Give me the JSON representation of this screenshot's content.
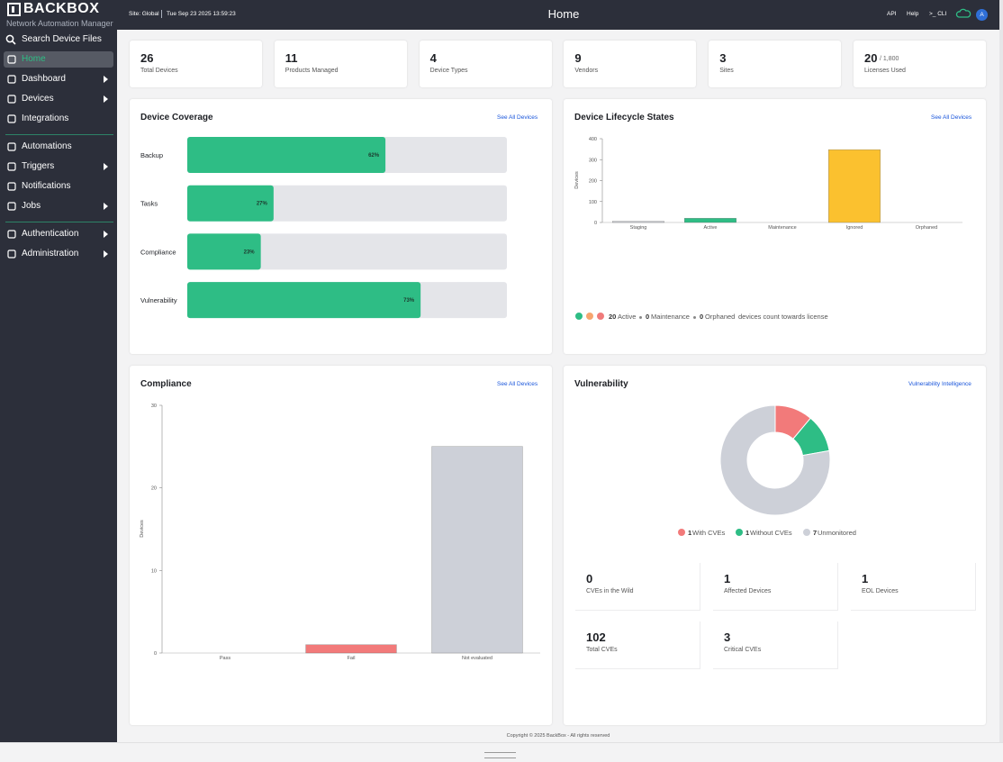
{
  "header": {
    "logo": "BACKBOX",
    "subtitle": "Network Automation Manager",
    "site": "Site: Global",
    "datetime": "Tue Sep 23 2025 13:59:23",
    "page_title": "Home",
    "links": [
      "API",
      "Help",
      ">_ CLI"
    ],
    "avatar": "A"
  },
  "sidebar": {
    "search": "Search Device Files",
    "groups": [
      [
        {
          "label": "Home",
          "active": true,
          "expandable": false
        },
        {
          "label": "Dashboard",
          "active": false,
          "expandable": true
        },
        {
          "label": "Devices",
          "active": false,
          "expandable": true
        },
        {
          "label": "Integrations",
          "active": false,
          "expandable": false
        }
      ],
      [
        {
          "label": "Automations",
          "active": false,
          "expandable": false
        },
        {
          "label": "Triggers",
          "active": false,
          "expandable": true
        },
        {
          "label": "Notifications",
          "active": false,
          "expandable": false
        },
        {
          "label": "Jobs",
          "active": false,
          "expandable": true
        }
      ],
      [
        {
          "label": "Authentication",
          "active": false,
          "expandable": true
        },
        {
          "label": "Administration",
          "active": false,
          "expandable": true
        }
      ]
    ]
  },
  "stats": [
    {
      "value": 26,
      "label": "Total Devices"
    },
    {
      "value": 11,
      "label": "Products Managed"
    },
    {
      "value": 4,
      "label": "Device Types"
    },
    {
      "value": 9,
      "label": "Vendors"
    },
    {
      "value": 3,
      "label": "Sites"
    },
    {
      "value": 20,
      "suffix": "/ 1,800",
      "label": "Licenses Used"
    }
  ],
  "chart_data": [
    {
      "type": "progress",
      "title": "Device Coverage",
      "link": "See All Devices",
      "categories": [
        "Backup",
        "Tasks",
        "Compliance",
        "Vulnerability"
      ],
      "values": [
        62,
        27,
        23,
        73
      ],
      "value_labels": [
        "62%",
        "27%",
        "23%",
        "73%"
      ],
      "xlim": [
        0,
        100
      ],
      "color": "#2ebd85"
    },
    {
      "type": "bar",
      "title": "Device Lifecycle States",
      "link": "See All Devices",
      "categories": [
        "Staging",
        "Active",
        "Maintenance",
        "Ignored",
        "Orphaned"
      ],
      "values": [
        5,
        20,
        0,
        348,
        0
      ],
      "colors": [
        "#c8cad0",
        "#2ebd85",
        "#f7a56f",
        "#fbc12f",
        "#f07b7b"
      ],
      "ylim": [
        0,
        400
      ],
      "yticks": [
        0,
        100,
        200,
        300,
        400
      ],
      "ylabel": "Devices",
      "license_note": [
        {
          "count": 20,
          "label": "Active",
          "color": "#2ebd85"
        },
        {
          "count": 0,
          "label": "Maintenance",
          "color": "#f7a56f"
        },
        {
          "count": 0,
          "label": "Orphaned",
          "color": "#f07b7b"
        }
      ],
      "license_note_suffix": "devices count towards license"
    },
    {
      "type": "bar",
      "title": "Compliance",
      "link": "See All Devices",
      "categories": [
        "Pass",
        "Fail",
        "Not evaluated"
      ],
      "values": [
        0,
        1,
        25
      ],
      "colors": [
        "#2aa39a",
        "#f27a7a",
        "#cdd0d8"
      ],
      "ylim": [
        0,
        30
      ],
      "yticks": [
        0,
        10,
        20,
        30
      ],
      "ylabel": "Devices"
    },
    {
      "type": "donut",
      "title": "Vulnerability",
      "link": "Vulnerability Intelligence",
      "categories": [
        "With CVEs",
        "Without CVEs",
        "Unmonitored"
      ],
      "values": [
        1,
        1,
        7
      ],
      "colors": [
        "#f27a7a",
        "#2ebd85",
        "#cdd0d8"
      ]
    }
  ],
  "vulnerability_stats": [
    {
      "value": 0,
      "label": "CVEs in the Wild"
    },
    {
      "value": 1,
      "label": "Affected Devices"
    },
    {
      "value": 1,
      "label": "EOL Devices"
    },
    {
      "value": 102,
      "label": "Total CVEs"
    },
    {
      "value": 3,
      "label": "Critical CVEs"
    }
  ],
  "footer": "Copyright © 2025 BackBox - All rights reserved"
}
